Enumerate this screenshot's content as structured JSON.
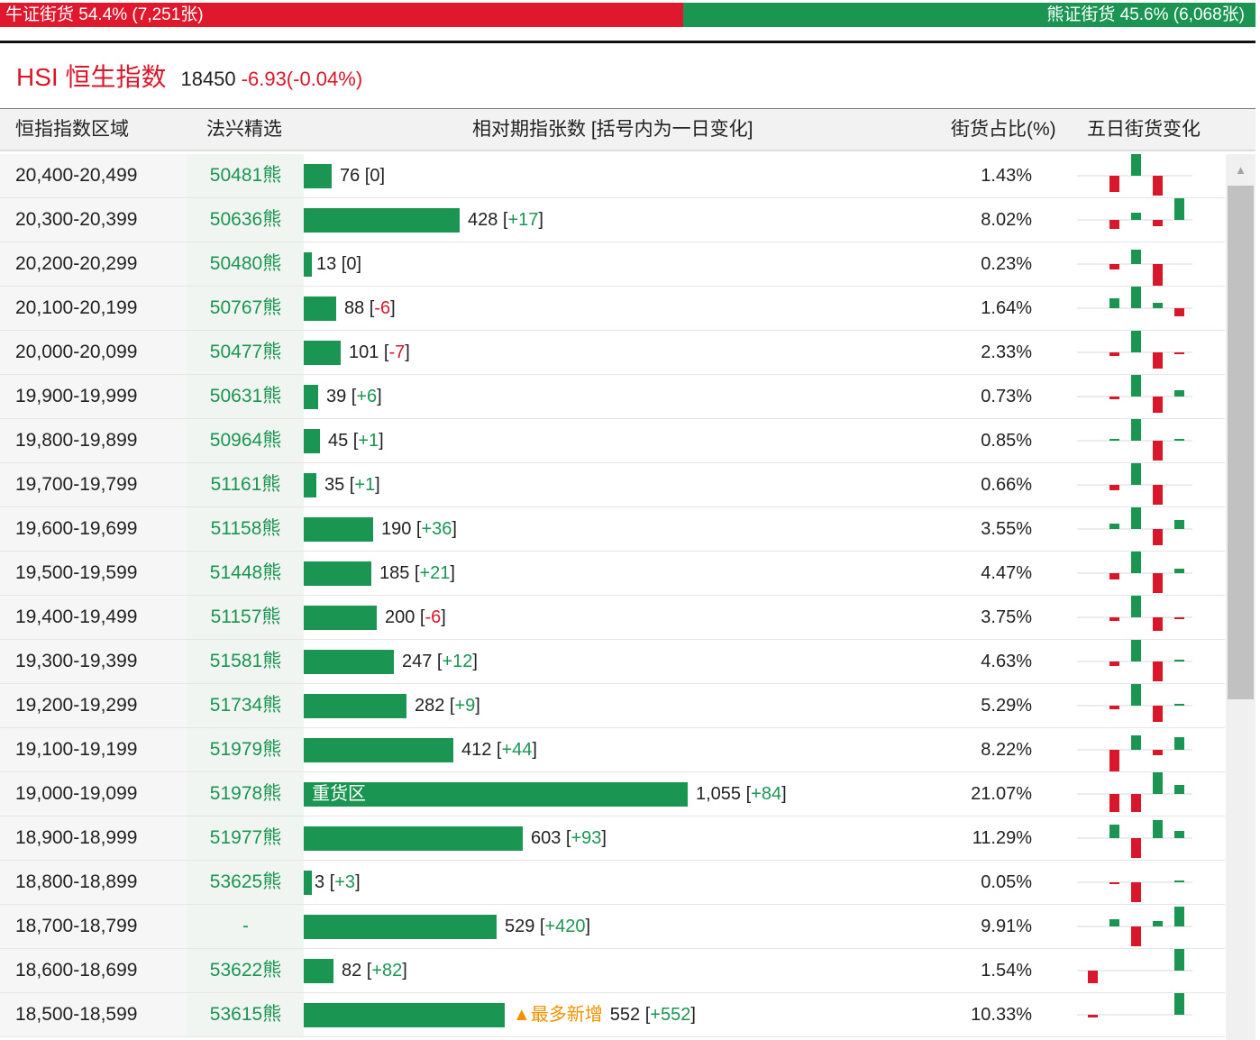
{
  "summary": {
    "bull_label": "牛证街货 54.4% (7,251张)",
    "bear_label": "熊证街货 45.6% (6,068张)",
    "bull_pct": 54.4,
    "bear_pct": 45.6
  },
  "index": {
    "name": "HSI 恒生指数",
    "price": "18450",
    "change": "-6.93(-0.04%)"
  },
  "table": {
    "headers": [
      "恒指指数区域",
      "法兴精选",
      "相对期指张数 [括号内为一日变化]",
      "街货占比(%)",
      "五日街货变化"
    ],
    "rows": [
      {
        "range": "20,400-20,499",
        "code": "50481熊",
        "contracts": "76",
        "change": "0",
        "pct": "1.43%",
        "bar_value": 76,
        "spark": [
          0,
          -18,
          25,
          -22,
          0
        ]
      },
      {
        "range": "20,300-20,399",
        "code": "50636熊",
        "contracts": "428",
        "change": "+17",
        "pct": "8.02%",
        "bar_value": 428,
        "spark": [
          0,
          -10,
          8,
          -7,
          24
        ]
      },
      {
        "range": "20,200-20,299",
        "code": "50480熊",
        "contracts": "13",
        "change": "0",
        "pct": "0.23%",
        "bar_value": 13,
        "spark": [
          0,
          -6,
          16,
          -24,
          0
        ]
      },
      {
        "range": "20,100-20,199",
        "code": "50767熊",
        "contracts": "88",
        "change": "-6",
        "pct": "1.64%",
        "bar_value": 88,
        "spark": [
          0,
          11,
          25,
          6,
          -9
        ]
      },
      {
        "range": "20,000-20,099",
        "code": "50477熊",
        "contracts": "101",
        "change": "-7",
        "pct": "2.33%",
        "bar_value": 101,
        "spark": [
          0,
          -4,
          25,
          -18,
          -2
        ]
      },
      {
        "range": "19,900-19,999",
        "code": "50631熊",
        "contracts": "39",
        "change": "+6",
        "pct": "0.73%",
        "bar_value": 39,
        "spark": [
          0,
          -3,
          25,
          -18,
          7
        ]
      },
      {
        "range": "19,800-19,899",
        "code": "50964熊",
        "contracts": "45",
        "change": "+1",
        "pct": "0.85%",
        "bar_value": 45,
        "spark": [
          0,
          2,
          25,
          -22,
          2
        ]
      },
      {
        "range": "19,700-19,799",
        "code": "51161熊",
        "contracts": "35",
        "change": "+1",
        "pct": "0.66%",
        "bar_value": 35,
        "spark": [
          0,
          -6,
          25,
          -22,
          0
        ]
      },
      {
        "range": "19,600-19,699",
        "code": "51158熊",
        "contracts": "190",
        "change": "+36",
        "pct": "3.55%",
        "bar_value": 190,
        "spark": [
          0,
          6,
          25,
          -18,
          10
        ]
      },
      {
        "range": "19,500-19,599",
        "code": "51448熊",
        "contracts": "185",
        "change": "+21",
        "pct": "4.47%",
        "bar_value": 185,
        "spark": [
          0,
          -7,
          25,
          -22,
          5
        ]
      },
      {
        "range": "19,400-19,499",
        "code": "51157熊",
        "contracts": "200",
        "change": "-6",
        "pct": "3.75%",
        "bar_value": 200,
        "spark": [
          0,
          -4,
          25,
          -15,
          -2
        ]
      },
      {
        "range": "19,300-19,399",
        "code": "51581熊",
        "contracts": "247",
        "change": "+12",
        "pct": "4.63%",
        "bar_value": 247,
        "spark": [
          0,
          -5,
          25,
          -22,
          1
        ]
      },
      {
        "range": "19,200-19,299",
        "code": "51734熊",
        "contracts": "282",
        "change": "+9",
        "pct": "5.29%",
        "bar_value": 282,
        "spark": [
          0,
          -4,
          25,
          -18,
          1
        ]
      },
      {
        "range": "19,100-19,199",
        "code": "51979熊",
        "contracts": "412",
        "change": "+44",
        "pct": "8.22%",
        "bar_value": 412,
        "spark": [
          0,
          -25,
          16,
          -6,
          14
        ]
      },
      {
        "range": "19,000-19,099",
        "code": "51978熊",
        "contracts": "1,055",
        "change": "+84",
        "pct": "21.07%",
        "bar_value": 1055,
        "spark": [
          0,
          -20,
          -20,
          25,
          10
        ],
        "tag": "重货区",
        "tag_inside": true
      },
      {
        "range": "18,900-18,999",
        "code": "51977熊",
        "contracts": "603",
        "change": "+93",
        "pct": "11.29%",
        "bar_value": 603,
        "spark": [
          0,
          15,
          -22,
          20,
          8
        ]
      },
      {
        "range": "18,800-18,899",
        "code": "53625熊",
        "contracts": "3",
        "change": "+3",
        "pct": "0.05%",
        "bar_value": 3,
        "spark": [
          0,
          -2,
          -22,
          0,
          2
        ]
      },
      {
        "range": "18,700-18,799",
        "code": "-",
        "contracts": "529",
        "change": "+420",
        "pct": "9.91%",
        "bar_value": 529,
        "spark": [
          0,
          8,
          -22,
          6,
          22
        ]
      },
      {
        "range": "18,600-18,699",
        "code": "53622熊",
        "contracts": "82",
        "change": "+82",
        "pct": "1.54%",
        "bar_value": 82,
        "spark": [
          -14,
          0,
          0,
          0,
          24
        ]
      },
      {
        "range": "18,500-18,599",
        "code": "53615熊",
        "contracts": "552",
        "change": "+552",
        "pct": "10.33%",
        "bar_value": 552,
        "spark": [
          -3,
          0,
          0,
          0,
          24
        ],
        "tag": "▲最多新增",
        "tag_inside": false
      }
    ]
  },
  "colors": {
    "up": "#1a9552",
    "down": "#d9172b",
    "accent": "#f39200"
  },
  "icons": {
    "scroll_up": "triangle-up-icon"
  }
}
